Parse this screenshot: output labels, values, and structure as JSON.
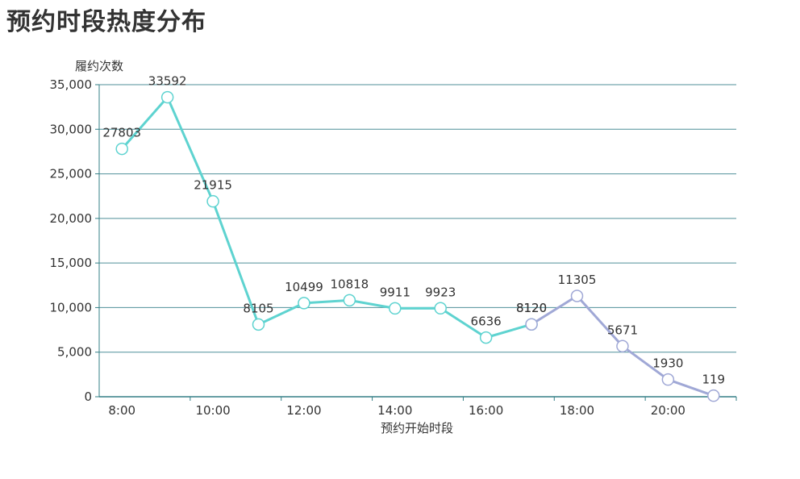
{
  "page_title": "预约时段热度分布",
  "colors": {
    "line_a": "#5ed3d0",
    "line_b": "#a0a8d6",
    "grid": "#4f8f99",
    "axis": "#337f86",
    "text": "#333333"
  },
  "chart_data": {
    "type": "line",
    "title": "预约时段热度分布",
    "xlabel": "预约开始时段",
    "ylabel": "履约次数",
    "ylim": [
      0,
      35000
    ],
    "yticks": [
      "0",
      "5,000",
      "10,000",
      "15,000",
      "20,000",
      "25,000",
      "30,000",
      "35,000"
    ],
    "x_tick_labels": [
      "8:00",
      "10:00",
      "12:00",
      "14:00",
      "16:00",
      "18:00",
      "20:00"
    ],
    "grid": true,
    "legend": "none",
    "series": [
      {
        "hours": [
          8,
          9,
          10,
          11,
          12,
          13,
          14,
          15,
          16,
          17
        ],
        "values": [
          27803,
          33592,
          21915,
          8105,
          10499,
          10818,
          9911,
          9923,
          6636,
          8120
        ],
        "color": "#5ed3d0"
      },
      {
        "hours": [
          17,
          18,
          19,
          20,
          21
        ],
        "values": [
          8120,
          11305,
          5671,
          1930,
          119
        ],
        "color": "#a0a8d6"
      }
    ]
  }
}
